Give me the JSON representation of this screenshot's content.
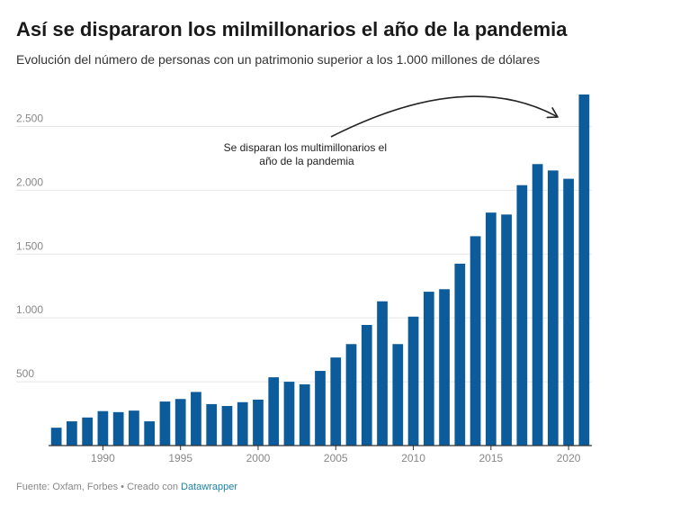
{
  "title": "Así se dispararon los milmillonarios el año de la pandemia",
  "subtitle": "Evolución del número de personas con un patrimonio superior a los 1.000 millones de dólares",
  "footer": {
    "source_text": "Fuente: Oxfam, Forbes • Creado con ",
    "link_text": "Datawrapper"
  },
  "colors": {
    "bar": "#0c5b9a",
    "grid": "#e6e6e6",
    "axis": "#333333",
    "tick_text": "#888888",
    "link": "#1d81a2"
  },
  "chart_data": {
    "type": "bar",
    "title": "Así se dispararon los milmillonarios el año de la pandemia",
    "subtitle": "Evolución del número de personas con un patrimonio superior a los 1.000 millones de dólares",
    "xlabel": "",
    "ylabel": "",
    "categories": [
      1987,
      1988,
      1989,
      1990,
      1991,
      1992,
      1993,
      1994,
      1995,
      1996,
      1997,
      1998,
      1999,
      2000,
      2001,
      2002,
      2003,
      2004,
      2005,
      2006,
      2007,
      2008,
      2009,
      2010,
      2011,
      2012,
      2013,
      2014,
      2015,
      2016,
      2017,
      2018,
      2019,
      2020,
      2021
    ],
    "values": [
      140,
      190,
      220,
      270,
      262,
      274,
      190,
      345,
      365,
      420,
      325,
      310,
      340,
      360,
      535,
      500,
      480,
      585,
      690,
      795,
      945,
      1130,
      795,
      1010,
      1205,
      1225,
      1425,
      1640,
      1825,
      1810,
      2040,
      2205,
      2155,
      2090,
      2750
    ],
    "ylim": [
      0,
      2750
    ],
    "y_ticks": [
      500,
      1000,
      1500,
      2000,
      2500
    ],
    "y_tick_labels": [
      "500",
      "1.000",
      "1.500",
      "2.000",
      "2.500"
    ],
    "x_ticks": [
      1990,
      1995,
      2000,
      2005,
      2010,
      2015,
      2020
    ],
    "x_tick_labels": [
      "1990",
      "1995",
      "2000",
      "2005",
      "2010",
      "2015",
      "2020"
    ],
    "grid": true,
    "legend": "none",
    "annotation": {
      "lines": [
        "Se disparan los multimillonarios el",
        "año de la pandemia"
      ],
      "points_to": 2021
    }
  }
}
